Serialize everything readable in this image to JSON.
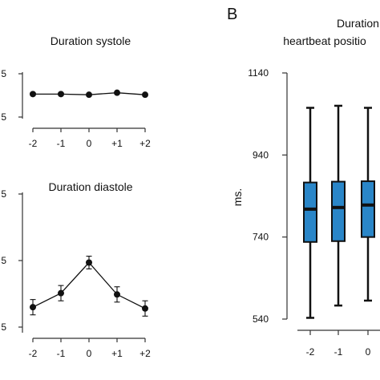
{
  "panel_b_label": "B",
  "chart_data": [
    {
      "type": "line",
      "title": "Duration systole",
      "x": [
        "-2",
        "-1",
        "0",
        "+1",
        "+2"
      ],
      "values": [
        327,
        327,
        326,
        329,
        326
      ],
      "errors": [
        2,
        2,
        2,
        2,
        2
      ],
      "y_tick_labels": [
        "5",
        "5"
      ],
      "ylim": [
        290,
        360
      ],
      "color": "#111111"
    },
    {
      "type": "line",
      "title": "Duration diastole",
      "x": [
        "-2",
        "-1",
        "0",
        "+1",
        "+2"
      ],
      "values": [
        470,
        492,
        540,
        490,
        468
      ],
      "errors": [
        12,
        12,
        10,
        12,
        12
      ],
      "y_tick_labels": [
        "5",
        "5",
        "5"
      ],
      "ylim": [
        430,
        650
      ],
      "color": "#111111"
    },
    {
      "type": "box",
      "title_lines": [
        "Duration IB",
        "heartbeat positio"
      ],
      "ylabel": "ms.",
      "y_ticks": [
        540,
        740,
        940,
        1140
      ],
      "ylim": [
        540,
        1140
      ],
      "x": [
        "-2",
        "-1",
        "0"
      ],
      "boxes": [
        {
          "min": 543,
          "q1": 728,
          "median": 808,
          "q3": 873,
          "max": 1055
        },
        {
          "min": 573,
          "q1": 730,
          "median": 812,
          "q3": 875,
          "max": 1060
        },
        {
          "min": 585,
          "q1": 740,
          "median": 818,
          "q3": 876,
          "max": 1055
        }
      ],
      "box_color": "#2a86c8"
    }
  ]
}
